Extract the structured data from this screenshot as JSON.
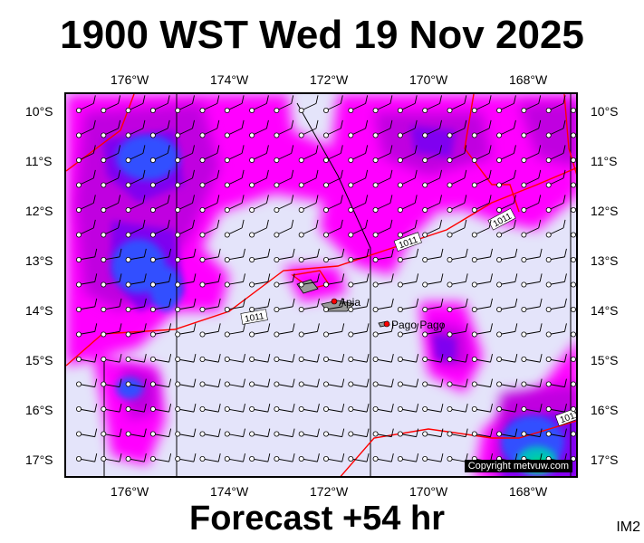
{
  "header": {
    "title": "1900 WST Wed 19 Nov 2025"
  },
  "footer": {
    "forecast": "Forecast +54 hr",
    "product_id": "IM2"
  },
  "map": {
    "longitude_labels": [
      "176°W",
      "174°W",
      "172°W",
      "170°W",
      "168°W"
    ],
    "latitude_labels": [
      "10°S",
      "11°S",
      "12°S",
      "13°S",
      "14°S",
      "15°S",
      "16°S",
      "17°S"
    ],
    "places": [
      {
        "name": "Apia"
      },
      {
        "name": "Pago Pago"
      }
    ],
    "isobar_labels": [
      "1011",
      "1011",
      "1011",
      "1011"
    ],
    "copyright": "Copyright metvuw.com",
    "colors": {
      "background": "#e4e4fa",
      "level1": "#ff00ff",
      "level2": "#c000e0",
      "level3": "#8000f0",
      "level4": "#4040ff",
      "level5": "#2060ff",
      "level6": "#00c0c0",
      "level7": "#00e060",
      "isobar": "#ff0000",
      "marker": "#ff0000"
    }
  }
}
